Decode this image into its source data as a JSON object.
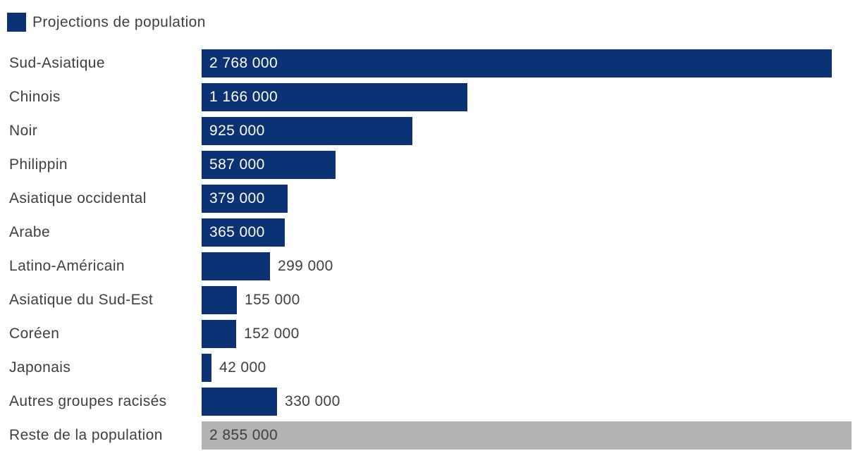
{
  "colors": {
    "accent": "#0b3275",
    "muted": "#b3b3b3",
    "text": "#3f3f3f",
    "inside_value_text": "#ffffff"
  },
  "chart_data": {
    "type": "bar",
    "orientation": "horizontal",
    "title": "",
    "legend_label": "Projections de population",
    "legend_position": "top-left",
    "grid": false,
    "xlim": [
      0,
      2855000
    ],
    "categories": [
      "Sud-Asiatique",
      "Chinois",
      "Noir",
      "Philippin",
      "Asiatique occidental",
      "Arabe",
      "Latino-Américain",
      "Asiatique du Sud-Est",
      "Coréen",
      "Japonais",
      "Autres groupes racisés",
      "Reste de la population"
    ],
    "values": [
      2768000,
      1166000,
      925000,
      587000,
      379000,
      365000,
      299000,
      155000,
      152000,
      42000,
      330000,
      2855000
    ],
    "items": [
      {
        "label": "Sud-Asiatique",
        "value": 2768000,
        "value_label": "2 768 000",
        "value_inside": true,
        "muted": false
      },
      {
        "label": "Chinois",
        "value": 1166000,
        "value_label": "1 166 000",
        "value_inside": true,
        "muted": false
      },
      {
        "label": "Noir",
        "value": 925000,
        "value_label": "925 000",
        "value_inside": true,
        "muted": false
      },
      {
        "label": "Philippin",
        "value": 587000,
        "value_label": "587 000",
        "value_inside": true,
        "muted": false
      },
      {
        "label": "Asiatique occidental",
        "value": 379000,
        "value_label": "379 000",
        "value_inside": true,
        "muted": false
      },
      {
        "label": "Arabe",
        "value": 365000,
        "value_label": "365 000",
        "value_inside": true,
        "muted": false
      },
      {
        "label": "Latino-Américain",
        "value": 299000,
        "value_label": "299 000",
        "value_inside": false,
        "muted": false
      },
      {
        "label": "Asiatique du Sud-Est",
        "value": 155000,
        "value_label": "155 000",
        "value_inside": false,
        "muted": false
      },
      {
        "label": "Coréen",
        "value": 152000,
        "value_label": "152 000",
        "value_inside": false,
        "muted": false
      },
      {
        "label": "Japonais",
        "value": 42000,
        "value_label": "42 000",
        "value_inside": false,
        "muted": false
      },
      {
        "label": "Autres groupes racisés",
        "value": 330000,
        "value_label": "330 000",
        "value_inside": false,
        "muted": false
      },
      {
        "label": "Reste de la population",
        "value": 2855000,
        "value_label": "2 855 000",
        "value_inside": true,
        "muted": true
      }
    ]
  }
}
